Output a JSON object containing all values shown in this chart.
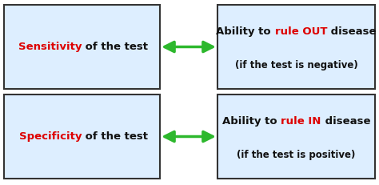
{
  "bg_color": "#ffffff",
  "box_bg_color": "#ddeeff",
  "box_edge_color": "#333333",
  "arrow_color": "#2db82d",
  "red_color": "#dd0000",
  "black_color": "#111111",
  "row1": {
    "left_red": "Sensitivity",
    "left_black": " of the test",
    "right_line1_b1": "Ability to ",
    "right_line1_red": "rule OUT",
    "right_line1_b2": " disease",
    "right_line2": "(if the test is negative)"
  },
  "row2": {
    "left_red": "Specificity",
    "left_black": " of the test",
    "right_line1_b1": "Ability to ",
    "right_line1_red": "rule IN",
    "right_line1_b2": " disease",
    "right_line2": "(if the test is positive)"
  },
  "figsize": [
    4.74,
    2.31
  ],
  "dpi": 100
}
